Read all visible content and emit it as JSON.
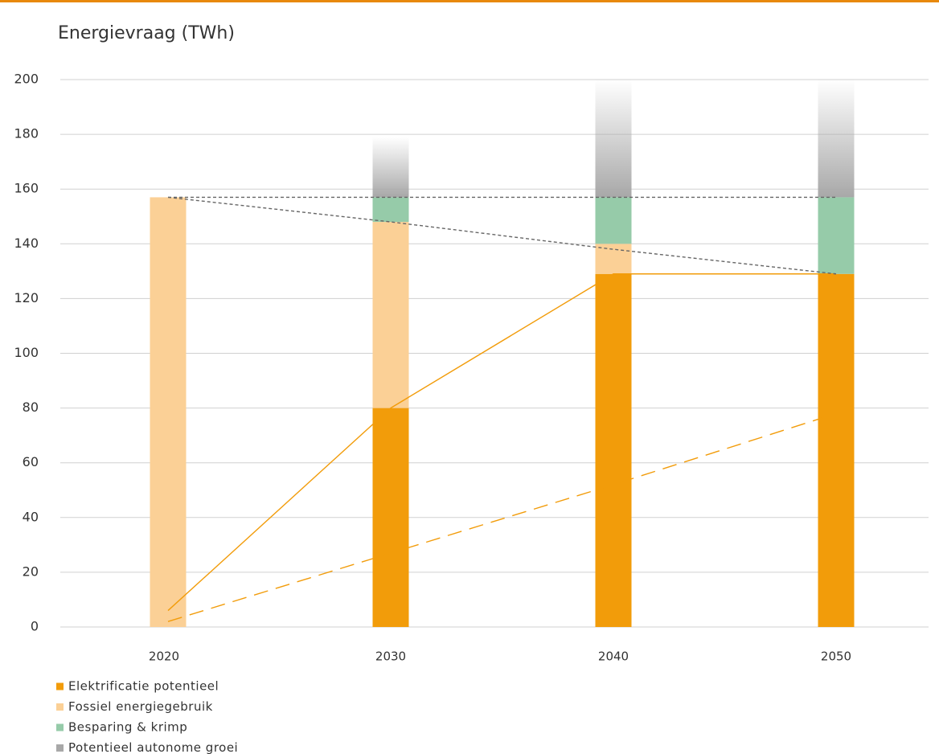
{
  "chart_data": {
    "type": "stacked_bar",
    "title": "Energievraag (TWh)",
    "categories": [
      "2020",
      "2030",
      "2040",
      "2050"
    ],
    "series": [
      {
        "name": "Elektrificatie potentieel",
        "color": "#f29c0a",
        "values": [
          0,
          80,
          129,
          129
        ]
      },
      {
        "name": "Fossiel energiegebruik",
        "color": "#fbd096",
        "values": [
          157,
          68,
          11,
          0
        ]
      },
      {
        "name": "Besparing & krimp",
        "color": "#96cba9",
        "values": [
          0,
          9,
          17,
          28
        ]
      },
      {
        "name": "Potentieel autonome groei",
        "color": "#a8a8a8",
        "gradient": true,
        "values": [
          0,
          22,
          43,
          43
        ]
      }
    ],
    "lines": [
      {
        "color": "#f29c0a",
        "dash": "none",
        "values": [
          6,
          80,
          129,
          129
        ]
      },
      {
        "color": "#f29c0a",
        "dash": "18 10",
        "values": [
          2,
          27,
          52,
          78
        ]
      },
      {
        "color": "#666666",
        "dash": "4 3",
        "values": [
          157,
          157,
          157,
          157
        ]
      },
      {
        "color": "#666666",
        "dash": "4 3",
        "values": [
          157,
          148,
          138,
          129
        ]
      }
    ],
    "ylim": [
      0,
      200
    ],
    "yticks": [
      0,
      20,
      40,
      60,
      80,
      100,
      120,
      140,
      160,
      180,
      200
    ],
    "grid": true
  }
}
